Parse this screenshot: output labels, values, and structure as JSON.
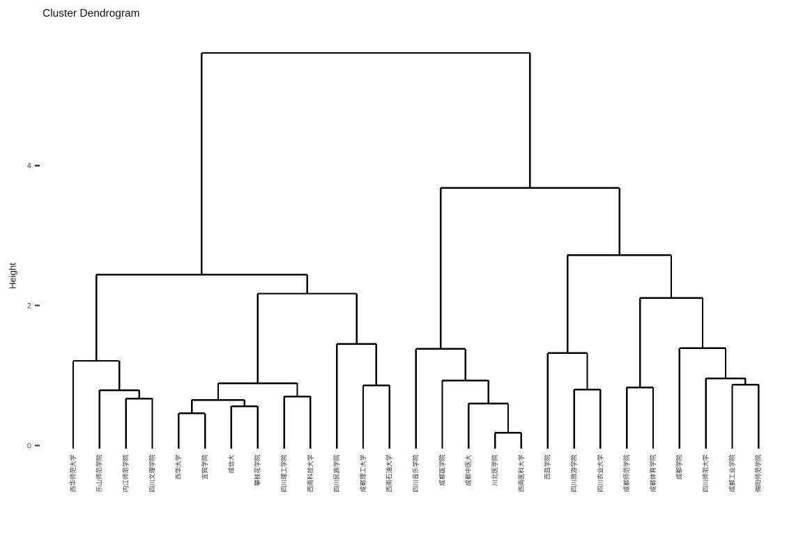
{
  "chart_data": {
    "type": "dendrogram",
    "title": "Cluster Dendrogram",
    "ylabel": "Height",
    "yticks": [
      0,
      2,
      4
    ],
    "ylim": [
      0,
      5.8
    ],
    "grid": false,
    "legend": "none",
    "line_color": "#000000",
    "tick_color": "#333333",
    "axis_text_color": "#4d4d4d",
    "leaf_text_color": "#333333",
    "leaves": [
      "西华师范大学",
      "乐山师范学院",
      "内江师范学院",
      "四川文理学院",
      "西华大学",
      "宜宾学院",
      "成信大",
      "攀枝花学院",
      "四川理工学院",
      "西南科技大学",
      "四川民族学院",
      "成都理工大学",
      "西南石油大学",
      "四川音乐学院",
      "成都医学院",
      "成都中医大",
      "川北医学院",
      "西南医科大学",
      "西昌学院",
      "四川旅游学院",
      "四川农业大学",
      "成都师范学院",
      "成都体育学院",
      "成都学院",
      "四川师范大学",
      "成都工业学院",
      "绵阳师范学院"
    ],
    "tree": {
      "h": 5.61,
      "c": [
        {
          "h": 2.44,
          "c": [
            {
              "h": 1.21,
              "c": [
                {
                  "leaf": 0
                },
                {
                  "h": 0.79,
                  "c": [
                    {
                      "leaf": 1
                    },
                    {
                      "h": 0.67,
                      "c": [
                        {
                          "leaf": 2
                        },
                        {
                          "leaf": 3
                        }
                      ]
                    }
                  ]
                }
              ]
            },
            {
              "h": 2.17,
              "c": [
                {
                  "h": 0.89,
                  "c": [
                    {
                      "h": 0.65,
                      "c": [
                        {
                          "h": 0.46,
                          "c": [
                            {
                              "leaf": 4
                            },
                            {
                              "leaf": 5
                            }
                          ]
                        },
                        {
                          "h": 0.56,
                          "c": [
                            {
                              "leaf": 6
                            },
                            {
                              "leaf": 7
                            }
                          ]
                        }
                      ]
                    },
                    {
                      "h": 0.7,
                      "c": [
                        {
                          "leaf": 8
                        },
                        {
                          "leaf": 9
                        }
                      ]
                    }
                  ]
                },
                {
                  "h": 1.45,
                  "c": [
                    {
                      "leaf": 10
                    },
                    {
                      "h": 0.86,
                      "c": [
                        {
                          "leaf": 11
                        },
                        {
                          "leaf": 12
                        }
                      ]
                    }
                  ]
                }
              ]
            }
          ]
        },
        {
          "h": 3.68,
          "c": [
            {
              "h": 1.38,
              "c": [
                {
                  "leaf": 13
                },
                {
                  "h": 0.93,
                  "c": [
                    {
                      "leaf": 14
                    },
                    {
                      "h": 0.6,
                      "c": [
                        {
                          "leaf": 15
                        },
                        {
                          "h": 0.18,
                          "c": [
                            {
                              "leaf": 16
                            },
                            {
                              "leaf": 17
                            }
                          ]
                        }
                      ]
                    }
                  ]
                }
              ]
            },
            {
              "h": 2.72,
              "c": [
                {
                  "h": 1.32,
                  "c": [
                    {
                      "leaf": 18
                    },
                    {
                      "h": 0.8,
                      "c": [
                        {
                          "leaf": 19
                        },
                        {
                          "leaf": 20
                        }
                      ]
                    }
                  ]
                },
                {
                  "h": 2.11,
                  "c": [
                    {
                      "h": 0.83,
                      "c": [
                        {
                          "leaf": 21
                        },
                        {
                          "leaf": 22
                        }
                      ]
                    },
                    {
                      "h": 1.39,
                      "c": [
                        {
                          "leaf": 23
                        },
                        {
                          "h": 0.96,
                          "c": [
                            {
                              "leaf": 24
                            },
                            {
                              "h": 0.87,
                              "c": [
                                {
                                  "leaf": 25
                                },
                                {
                                  "leaf": 26
                                }
                              ]
                            }
                          ]
                        }
                      ]
                    }
                  ]
                }
              ]
            }
          ]
        }
      ]
    }
  }
}
